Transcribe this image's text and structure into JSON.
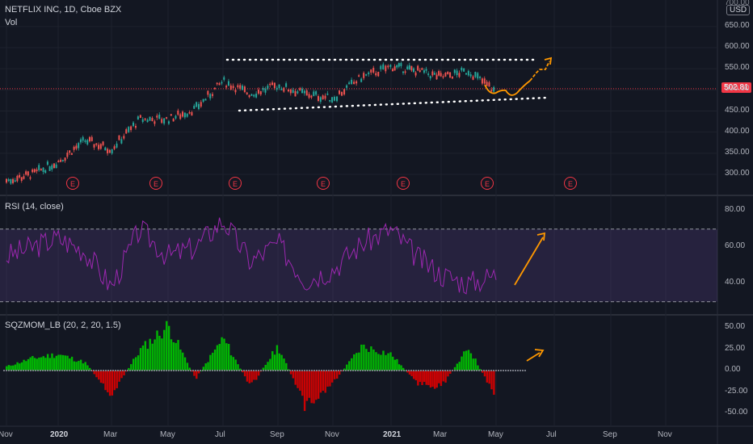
{
  "header": {
    "title": "NETFLIX INC, 1D, Cboe BZX",
    "vol_label": "Vol"
  },
  "price_axis": {
    "currency": "USD",
    "ticks": [
      "650.00",
      "600.00",
      "550.00",
      "500.00",
      "450.00",
      "400.00",
      "350.00",
      "300.00"
    ],
    "top_tick_partial": "700.00",
    "last_price": "502.81"
  },
  "earnings_marker": "E",
  "rsi_pane": {
    "label": "RSI (14, close)",
    "ticks": [
      "80.00",
      "60.00",
      "40.00"
    ]
  },
  "sqz_pane": {
    "label": "SQZMOM_LB (20, 2, 20, 1.5)",
    "ticks": [
      "50.00",
      "25.00",
      "0.00",
      "-25.00",
      "-50.00"
    ]
  },
  "time_axis": {
    "labels": [
      "Nov",
      "2020",
      "Mar",
      "May",
      "Jul",
      "Sep",
      "Nov",
      "2021",
      "Mar",
      "May",
      "Jul",
      "Sep",
      "Nov"
    ]
  },
  "colors": {
    "up": "#26a69a",
    "down": "#ef5350",
    "rsi": "#9c27b0",
    "sqz_up": "#00c800",
    "sqz_down": "#e00000",
    "arrow": "#ff9800",
    "dots": "#ffffff"
  },
  "chart_data": [
    {
      "type": "line",
      "title": "NETFLIX INC, 1D, Cboe BZX",
      "x": [
        "2019-11",
        "2019-12",
        "2020-01",
        "2020-02",
        "2020-03",
        "2020-04",
        "2020-05",
        "2020-06",
        "2020-07",
        "2020-08",
        "2020-09",
        "2020-10",
        "2020-11",
        "2020-12",
        "2021-01",
        "2021-02",
        "2021-03",
        "2021-04",
        "2021-05"
      ],
      "series": [
        {
          "values": [
            285,
            300,
            330,
            380,
            360,
            430,
            430,
            455,
            520,
            490,
            510,
            490,
            480,
            530,
            555,
            545,
            530,
            545,
            495
          ]
        }
      ],
      "ylim": [
        260,
        710
      ],
      "last_price": 502.81,
      "earnings_markers": [
        "2020-01",
        "2020-04",
        "2020-07",
        "2020-10",
        "2021-01",
        "2021-04",
        "2021-07"
      ]
    },
    {
      "type": "line",
      "title": "RSI (14, close)",
      "x": [
        "2019-11",
        "2019-12",
        "2020-01",
        "2020-02",
        "2020-03",
        "2020-04",
        "2020-05",
        "2020-06",
        "2020-07",
        "2020-08",
        "2020-09",
        "2020-10",
        "2020-11",
        "2020-12",
        "2021-01",
        "2021-02",
        "2021-03",
        "2021-04",
        "2021-05"
      ],
      "series": [
        {
          "values": [
            55,
            60,
            65,
            58,
            38,
            70,
            55,
            60,
            75,
            52,
            62,
            42,
            48,
            62,
            70,
            55,
            45,
            40,
            45
          ]
        }
      ],
      "ylim": [
        25,
        85
      ],
      "bands": [
        30,
        70
      ]
    },
    {
      "type": "bar",
      "title": "SQZMOM_LB (20, 2, 20, 1.5)",
      "x": [
        "2019-11",
        "2019-12",
        "2020-01",
        "2020-02",
        "2020-03",
        "2020-04",
        "2020-05",
        "2020-06",
        "2020-07",
        "2020-08",
        "2020-09",
        "2020-10",
        "2020-11",
        "2020-12",
        "2021-01",
        "2021-02",
        "2021-03",
        "2021-04",
        "2021-05"
      ],
      "series": [
        {
          "values": [
            5,
            15,
            20,
            10,
            -30,
            25,
            55,
            -10,
            40,
            -20,
            30,
            -45,
            -15,
            30,
            20,
            -15,
            -20,
            28,
            -35
          ]
        }
      ],
      "ylim": [
        -60,
        65
      ]
    }
  ]
}
